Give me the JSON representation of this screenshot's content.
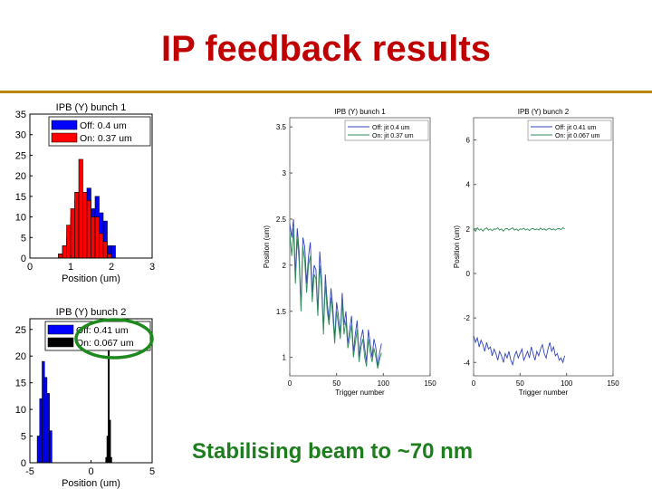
{
  "slide": {
    "title": "IP feedback results",
    "caption": "Stabilising beam to ~70 nm"
  },
  "colors": {
    "off": "#0000ff",
    "on": "#ff0000",
    "on_black": "#000000",
    "title": "#c00000",
    "caption": "#1e7d1e",
    "rule": "#b8860b",
    "trace_off": "#3344bb",
    "trace_on": "#2e8b57"
  },
  "chart_data": [
    {
      "type": "bar",
      "title": "IPB (Y) bunch 1",
      "xlabel": "Position (um)",
      "xlim": [
        0,
        3
      ],
      "ylim": [
        0,
        35
      ],
      "xticks": [
        "0",
        "1",
        "2",
        "3"
      ],
      "yticks": [
        "0",
        "5",
        "10",
        "15",
        "20",
        "25",
        "30",
        "35"
      ],
      "bin_edges": [
        0.7,
        0.8,
        0.9,
        1.0,
        1.1,
        1.2,
        1.3,
        1.4,
        1.5,
        1.6,
        1.7,
        1.8,
        1.9,
        2.0,
        2.1
      ],
      "series": [
        {
          "name": "Off: 0.4 um",
          "values": [
            1,
            3,
            5,
            10,
            14,
            14,
            16,
            17,
            12,
            15,
            11,
            9,
            3,
            3
          ]
        },
        {
          "name": "On: 0.37 um",
          "values": [
            1,
            3,
            8,
            12,
            16,
            24,
            16,
            14,
            10,
            10,
            6,
            4,
            1,
            0
          ]
        }
      ]
    },
    {
      "type": "bar",
      "title": "IPB (Y) bunch 2",
      "xlabel": "Position (um)",
      "xlim": [
        -5,
        5
      ],
      "ylim": [
        0,
        27
      ],
      "xticks": [
        "-5",
        "0",
        "5"
      ],
      "yticks": [
        "0",
        "5",
        "10",
        "15",
        "20",
        "25"
      ],
      "series": [
        {
          "name": "Off: 0.41 um",
          "bin_edges": [
            -4.4,
            -4.2,
            -4.0,
            -3.8,
            -3.6,
            -3.4,
            -3.2
          ],
          "values": [
            5,
            12,
            19,
            16,
            13,
            6
          ]
        },
        {
          "name": "On: 0.067 um",
          "bin_edges": [
            1.2,
            1.3,
            1.4,
            1.5,
            1.6,
            1.7
          ],
          "values": [
            1,
            5,
            24,
            8,
            1
          ]
        }
      ]
    },
    {
      "type": "line",
      "title": "IPB (Y) bunch 1",
      "xlabel": "Trigger number",
      "ylabel": "Position (um)",
      "xlim": [
        0,
        150
      ],
      "ylim": [
        0.8,
        3.6
      ],
      "xticks": [
        "0",
        "50",
        "100",
        "150"
      ],
      "yticks": [
        "1",
        "1.5",
        "2",
        "2.5",
        "3",
        "3.5"
      ],
      "x_start": 0,
      "x_step": 2,
      "series": [
        {
          "name": "Off: jit 0.4 um",
          "values": [
            2.45,
            2.3,
            2.5,
            1.9,
            2.4,
            2.15,
            1.55,
            2.3,
            2.2,
            1.8,
            2.1,
            2.25,
            1.7,
            2.0,
            1.95,
            1.5,
            2.15,
            1.85,
            1.3,
            1.9,
            1.6,
            1.4,
            1.75,
            1.55,
            1.2,
            1.6,
            1.45,
            1.25,
            1.7,
            1.35,
            1.5,
            1.15,
            1.3,
            1.45,
            1.05,
            1.25,
            1.4,
            1.0,
            1.2,
            1.3,
            1.1,
            0.95,
            1.3,
            1.15,
            1.0,
            1.2,
            1.1,
            0.9,
            1.05,
            1.15
          ]
        },
        {
          "name": "On: jit 0.37 um",
          "values": [
            2.35,
            2.1,
            2.4,
            1.8,
            2.3,
            2.05,
            1.5,
            2.2,
            2.05,
            1.7,
            2.0,
            2.1,
            1.6,
            1.9,
            1.85,
            1.45,
            2.0,
            1.75,
            1.25,
            1.8,
            1.5,
            1.35,
            1.65,
            1.45,
            1.15,
            1.5,
            1.35,
            1.2,
            1.6,
            1.25,
            1.4,
            1.1,
            1.2,
            1.35,
            1.0,
            1.15,
            1.3,
            0.95,
            1.1,
            1.2,
            1.0,
            0.9,
            1.2,
            1.05,
            0.95,
            1.1,
            1.0,
            0.88,
            0.98,
            1.05
          ]
        }
      ]
    },
    {
      "type": "line",
      "title": "IPB (Y) bunch 2",
      "xlabel": "Trigger number",
      "ylabel": "Position (um)",
      "xlim": [
        0,
        150
      ],
      "ylim": [
        -4.6,
        7
      ],
      "xticks": [
        "0",
        "50",
        "100",
        "150"
      ],
      "yticks": [
        "-4",
        "-2",
        "0",
        "2",
        "4",
        "6"
      ],
      "x_start": 0,
      "x_step": 2,
      "series": [
        {
          "name": "Off: jit 0.41 um",
          "values": [
            -2.8,
            -3.1,
            -2.9,
            -3.3,
            -3.0,
            -3.2,
            -3.5,
            -3.1,
            -3.4,
            -3.3,
            -3.7,
            -3.4,
            -3.6,
            -3.9,
            -3.5,
            -3.7,
            -4.0,
            -3.6,
            -3.8,
            -3.5,
            -3.9,
            -4.1,
            -3.7,
            -3.5,
            -3.8,
            -3.6,
            -3.4,
            -3.9,
            -3.7,
            -3.5,
            -3.8,
            -3.3,
            -3.6,
            -3.9,
            -3.5,
            -3.7,
            -3.4,
            -3.2,
            -3.6,
            -3.8,
            -3.4,
            -3.1,
            -3.5,
            -3.3,
            -3.7,
            -3.6,
            -3.9,
            -3.8,
            -4.0,
            -3.7
          ]
        },
        {
          "name": "On: jit 0.067 um",
          "values": [
            2.0,
            1.9,
            2.05,
            1.95,
            2.0,
            1.9,
            2.0,
            2.05,
            1.95,
            2.0,
            1.92,
            2.0,
            1.98,
            2.05,
            1.95,
            2.0,
            1.9,
            2.0,
            2.02,
            1.95,
            2.0,
            2.05,
            1.95,
            2.0,
            1.92,
            2.0,
            1.98,
            2.03,
            1.95,
            2.0,
            1.93,
            2.0,
            2.02,
            1.96,
            2.0,
            1.95,
            2.04,
            1.97,
            2.0,
            1.94,
            2.0,
            2.03,
            1.96,
            2.0,
            1.95,
            2.0,
            2.02,
            1.97,
            2.05,
            2.0
          ]
        }
      ]
    }
  ]
}
